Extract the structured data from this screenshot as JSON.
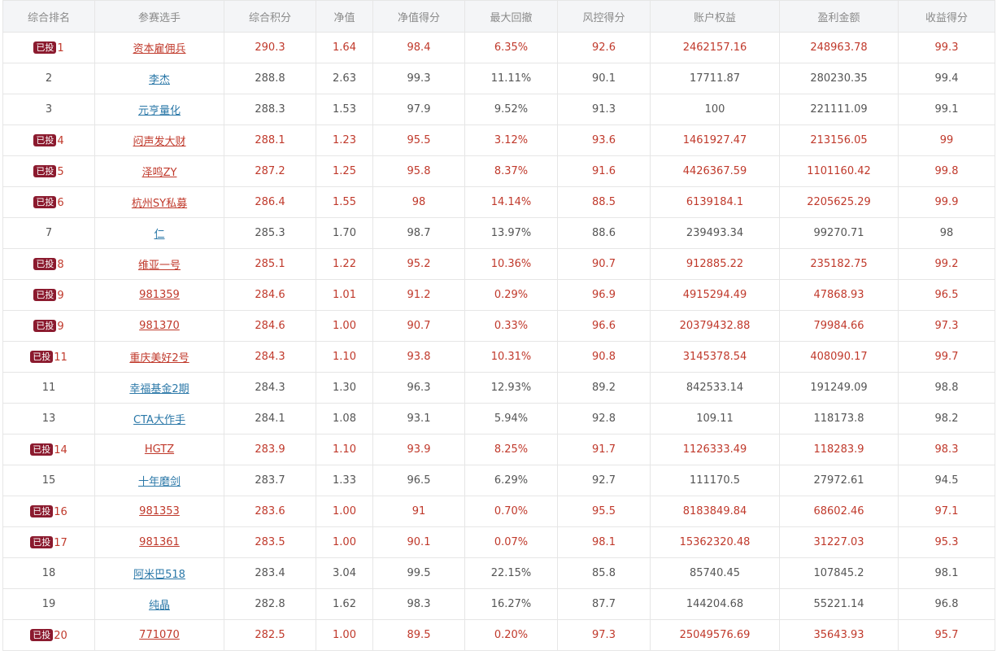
{
  "columns": [
    "综合排名",
    "参赛选手",
    "综合积分",
    "净值",
    "净值得分",
    "最大回撤",
    "风控得分",
    "账户权益",
    "盈利金额",
    "收益得分"
  ],
  "badge_label": "已投",
  "rows": [
    {
      "rank": "1",
      "invested": true,
      "name": "资本雇佣兵",
      "score": "290.3",
      "nav": "1.64",
      "nav_score": "98.4",
      "max_drawdown": "6.35%",
      "risk_score": "92.6",
      "equity": "2462157.16",
      "profit": "248963.78",
      "return_score": "99.3"
    },
    {
      "rank": "2",
      "invested": false,
      "name": "李杰",
      "score": "288.8",
      "nav": "2.63",
      "nav_score": "99.3",
      "max_drawdown": "11.11%",
      "risk_score": "90.1",
      "equity": "17711.87",
      "profit": "280230.35",
      "return_score": "99.4"
    },
    {
      "rank": "3",
      "invested": false,
      "name": "元亨量化",
      "score": "288.3",
      "nav": "1.53",
      "nav_score": "97.9",
      "max_drawdown": "9.52%",
      "risk_score": "91.3",
      "equity": "100",
      "profit": "221111.09",
      "return_score": "99.1"
    },
    {
      "rank": "4",
      "invested": true,
      "name": "闷声发大财",
      "score": "288.1",
      "nav": "1.23",
      "nav_score": "95.5",
      "max_drawdown": "3.12%",
      "risk_score": "93.6",
      "equity": "1461927.47",
      "profit": "213156.05",
      "return_score": "99"
    },
    {
      "rank": "5",
      "invested": true,
      "name": "泽鸣ZY",
      "score": "287.2",
      "nav": "1.25",
      "nav_score": "95.8",
      "max_drawdown": "8.37%",
      "risk_score": "91.6",
      "equity": "4426367.59",
      "profit": "1101160.42",
      "return_score": "99.8"
    },
    {
      "rank": "6",
      "invested": true,
      "name": "杭州SY私募",
      "score": "286.4",
      "nav": "1.55",
      "nav_score": "98",
      "max_drawdown": "14.14%",
      "risk_score": "88.5",
      "equity": "6139184.1",
      "profit": "2205625.29",
      "return_score": "99.9"
    },
    {
      "rank": "7",
      "invested": false,
      "name": "仁",
      "score": "285.3",
      "nav": "1.70",
      "nav_score": "98.7",
      "max_drawdown": "13.97%",
      "risk_score": "88.6",
      "equity": "239493.34",
      "profit": "99270.71",
      "return_score": "98"
    },
    {
      "rank": "8",
      "invested": true,
      "name": "维亚一号",
      "score": "285.1",
      "nav": "1.22",
      "nav_score": "95.2",
      "max_drawdown": "10.36%",
      "risk_score": "90.7",
      "equity": "912885.22",
      "profit": "235182.75",
      "return_score": "99.2"
    },
    {
      "rank": "9",
      "invested": true,
      "name": "981359",
      "score": "284.6",
      "nav": "1.01",
      "nav_score": "91.2",
      "max_drawdown": "0.29%",
      "risk_score": "96.9",
      "equity": "4915294.49",
      "profit": "47868.93",
      "return_score": "96.5"
    },
    {
      "rank": "9",
      "invested": true,
      "name": "981370",
      "score": "284.6",
      "nav": "1.00",
      "nav_score": "90.7",
      "max_drawdown": "0.33%",
      "risk_score": "96.6",
      "equity": "20379432.88",
      "profit": "79984.66",
      "return_score": "97.3"
    },
    {
      "rank": "11",
      "invested": true,
      "name": "重庆美好2号",
      "score": "284.3",
      "nav": "1.10",
      "nav_score": "93.8",
      "max_drawdown": "10.31%",
      "risk_score": "90.8",
      "equity": "3145378.54",
      "profit": "408090.17",
      "return_score": "99.7"
    },
    {
      "rank": "11",
      "invested": false,
      "name": "幸福基金2期",
      "score": "284.3",
      "nav": "1.30",
      "nav_score": "96.3",
      "max_drawdown": "12.93%",
      "risk_score": "89.2",
      "equity": "842533.14",
      "profit": "191249.09",
      "return_score": "98.8"
    },
    {
      "rank": "13",
      "invested": false,
      "name": "CTA大作手",
      "score": "284.1",
      "nav": "1.08",
      "nav_score": "93.1",
      "max_drawdown": "5.94%",
      "risk_score": "92.8",
      "equity": "109.11",
      "profit": "118173.8",
      "return_score": "98.2"
    },
    {
      "rank": "14",
      "invested": true,
      "name": "HGTZ",
      "score": "283.9",
      "nav": "1.10",
      "nav_score": "93.9",
      "max_drawdown": "8.25%",
      "risk_score": "91.7",
      "equity": "1126333.49",
      "profit": "118283.9",
      "return_score": "98.3"
    },
    {
      "rank": "15",
      "invested": false,
      "name": "十年磨剑",
      "score": "283.7",
      "nav": "1.33",
      "nav_score": "96.5",
      "max_drawdown": "6.29%",
      "risk_score": "92.7",
      "equity": "111170.5",
      "profit": "27972.61",
      "return_score": "94.5"
    },
    {
      "rank": "16",
      "invested": true,
      "name": "981353",
      "score": "283.6",
      "nav": "1.00",
      "nav_score": "91",
      "max_drawdown": "0.70%",
      "risk_score": "95.5",
      "equity": "8183849.84",
      "profit": "68602.46",
      "return_score": "97.1"
    },
    {
      "rank": "17",
      "invested": true,
      "name": "981361",
      "score": "283.5",
      "nav": "1.00",
      "nav_score": "90.1",
      "max_drawdown": "0.07%",
      "risk_score": "98.1",
      "equity": "15362320.48",
      "profit": "31227.03",
      "return_score": "95.3"
    },
    {
      "rank": "18",
      "invested": false,
      "name": "阿米巴518",
      "score": "283.4",
      "nav": "3.04",
      "nav_score": "99.5",
      "max_drawdown": "22.15%",
      "risk_score": "85.8",
      "equity": "85740.45",
      "profit": "107845.2",
      "return_score": "98.1"
    },
    {
      "rank": "19",
      "invested": false,
      "name": "纯晶",
      "score": "282.8",
      "nav": "1.62",
      "nav_score": "98.3",
      "max_drawdown": "16.27%",
      "risk_score": "87.7",
      "equity": "144204.68",
      "profit": "55221.14",
      "return_score": "96.8"
    },
    {
      "rank": "20",
      "invested": true,
      "name": "771070",
      "score": "282.5",
      "nav": "1.00",
      "nav_score": "89.5",
      "max_drawdown": "0.20%",
      "risk_score": "97.3",
      "equity": "25049576.69",
      "profit": "35643.93",
      "return_score": "95.7"
    }
  ]
}
